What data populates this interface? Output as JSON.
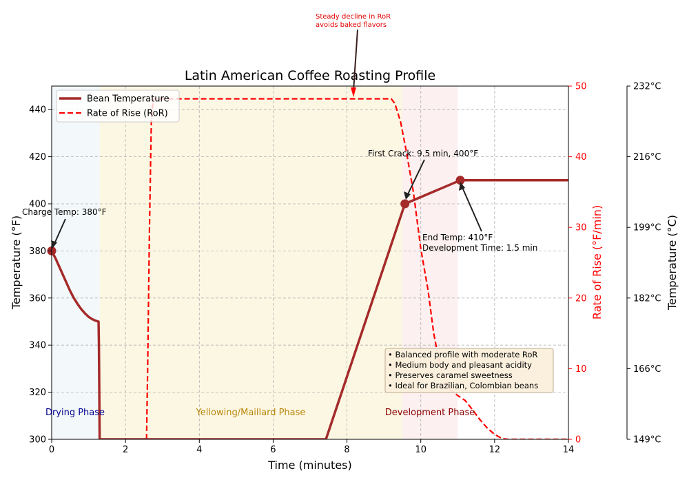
{
  "chart_data": {
    "type": "line",
    "title": "Latin American Coffee Roasting Profile",
    "xlabel": "Time (minutes)",
    "ylabel_left": "Temperature (°F)",
    "ylabel_right": "Rate of Rise (°F/min)",
    "ylabel_far_right": "Temperature (°C)",
    "xlim": [
      0,
      14
    ],
    "ylim_left": [
      300,
      450
    ],
    "ylim_right": [
      0,
      50
    ],
    "grid": true,
    "legend_position": "upper-left",
    "x_ticks": [
      "0",
      "2",
      "4",
      "6",
      "8",
      "10",
      "12",
      "14"
    ],
    "y_left_ticks": [
      "300",
      "320",
      "340",
      "360",
      "380",
      "400",
      "420",
      "440"
    ],
    "y_right_ticks": [
      "0",
      "10",
      "20",
      "30",
      "40",
      "50"
    ],
    "y_far_right_ticks": [
      "149°C",
      "166°C",
      "182°C",
      "199°C",
      "216°C",
      "232°C"
    ],
    "colors": {
      "bean_temperature": "#a52a2a",
      "ror": "#ff0000",
      "drying_phase": "#add8e6",
      "yellowing_phase": "#f5e6a3",
      "development_phase": "#f4c2c2",
      "drying_label": "#00008b",
      "yellowing_label": "#b8860b",
      "development_label": "#8b0000",
      "annotation_red": "#ff0000"
    },
    "series": [
      {
        "name": "Bean Temperature",
        "style": "solid",
        "points": [
          [
            0,
            380
          ],
          [
            0.1,
            377
          ],
          [
            0.2,
            373.5
          ],
          [
            0.3,
            370
          ],
          [
            0.4,
            366.5
          ],
          [
            0.5,
            363
          ],
          [
            0.6,
            360
          ],
          [
            0.7,
            357.5
          ],
          [
            0.8,
            355.3
          ],
          [
            0.9,
            353.5
          ],
          [
            1.0,
            352
          ],
          [
            1.1,
            351
          ],
          [
            1.2,
            350.3
          ],
          [
            1.27,
            350
          ],
          [
            1.28,
            340
          ],
          [
            1.29,
            320
          ],
          [
            1.3,
            300
          ],
          [
            7.43,
            300
          ],
          [
            9.57,
            400
          ],
          [
            11.07,
            410
          ],
          [
            14,
            410
          ]
        ]
      },
      {
        "name": "Rate of Rise (RoR)",
        "style": "dashed",
        "points": [
          [
            2.57,
            0
          ],
          [
            2.6,
            10
          ],
          [
            2.65,
            30
          ],
          [
            2.7,
            45
          ],
          [
            2.75,
            48.2
          ],
          [
            9.2,
            48.2
          ],
          [
            9.3,
            47.5
          ],
          [
            9.45,
            45
          ],
          [
            9.6,
            41
          ],
          [
            9.8,
            35
          ],
          [
            10.0,
            27
          ],
          [
            10.2,
            21
          ],
          [
            10.35,
            15
          ],
          [
            10.5,
            11
          ],
          [
            10.65,
            8.5
          ],
          [
            10.8,
            7
          ],
          [
            11.0,
            6.2
          ],
          [
            11.2,
            5.5
          ],
          [
            11.4,
            4.2
          ],
          [
            11.6,
            2.8
          ],
          [
            11.8,
            1.6
          ],
          [
            12.0,
            0.7
          ],
          [
            12.2,
            0.1
          ],
          [
            12.35,
            0
          ],
          [
            14,
            0
          ]
        ]
      }
    ],
    "markers": [
      {
        "x": 0,
        "y": 380
      },
      {
        "x": 9.57,
        "y": 400
      },
      {
        "x": 11.07,
        "y": 410
      }
    ],
    "phases": [
      {
        "label": "Drying Phase",
        "x_start": 0,
        "x_end": 1.3
      },
      {
        "label": "Yellowing/Maillard Phase",
        "x_start": 1.3,
        "x_end": 9.5
      },
      {
        "label": "Development Phase",
        "x_start": 9.5,
        "x_end": 11
      }
    ],
    "annotations": {
      "charge": "Charge Temp: 380°F",
      "first_crack": "First Crack: 9.5 min, 400°F",
      "end_line1": "End Temp: 410°F",
      "end_line2": "Development Time: 1.5 min",
      "ror_line1": "Steady decline in RoR",
      "ror_line2": "avoids baked flavors"
    },
    "notes": [
      "• Balanced profile with moderate RoR",
      "• Medium body and pleasant acidity",
      "• Preserves caramel sweetness",
      "• Ideal for Brazilian, Colombian beans"
    ]
  }
}
